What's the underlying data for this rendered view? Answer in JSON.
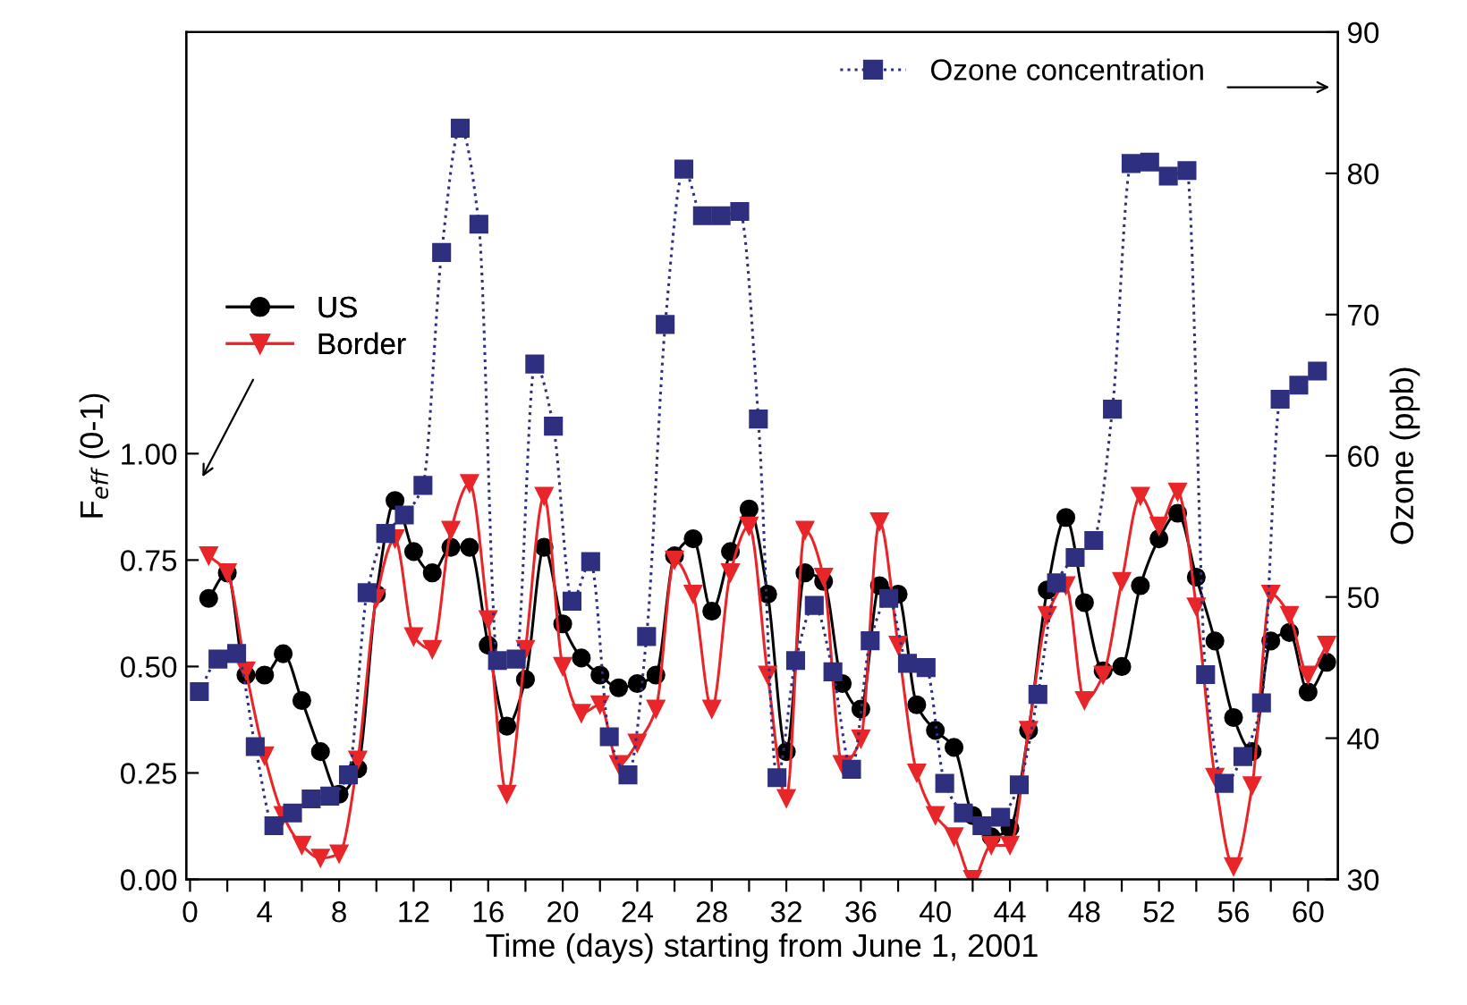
{
  "chart_data": {
    "type": "line",
    "xlabel": "Time (days) starting from June 1, 2001",
    "ylabel": "F$_{eff}$ (0-1)",
    "y2label": "Ozone (ppb)",
    "xlim": [
      -0.2,
      61.6
    ],
    "xticks": [
      0,
      {
        "value": 2,
        "label": null
      },
      4,
      {
        "value": 6,
        "label": null
      },
      8,
      {
        "value": 10,
        "label": null
      },
      12,
      {
        "value": 14,
        "label": null
      },
      16,
      {
        "value": 18,
        "label": null
      },
      20,
      {
        "value": 22,
        "label": null
      },
      24,
      {
        "value": 26,
        "label": null
      },
      28,
      {
        "value": 30,
        "label": null
      },
      32,
      {
        "value": 34,
        "label": null
      },
      36,
      {
        "value": 38,
        "label": null
      },
      40,
      {
        "value": 42,
        "label": null
      },
      44,
      {
        "value": 46,
        "label": null
      },
      48,
      {
        "value": 50,
        "label": null
      },
      52,
      {
        "value": 54,
        "label": null
      },
      56,
      {
        "value": 58,
        "label": null
      },
      60
    ],
    "ylim": [
      0,
      1.99
    ],
    "yticks": [
      {
        "value": 0,
        "label": "0.00"
      },
      {
        "value": 0.25,
        "label": "0.25"
      },
      {
        "value": 0.5,
        "label": "0.50"
      },
      {
        "value": 0.75,
        "label": "0.75"
      },
      {
        "value": 1.0,
        "label": "1.00"
      }
    ],
    "y2lim": [
      30,
      90
    ],
    "y2ticks": [
      30,
      40,
      50,
      60,
      70,
      80,
      90
    ],
    "legend": "top left",
    "grid": false,
    "series": [
      {
        "name": "US",
        "color": "#000000",
        "marker": "circle",
        "line_style": "solid",
        "x": [
          1,
          2,
          3,
          4,
          5,
          6,
          7,
          8,
          9,
          10,
          11,
          12,
          13,
          14,
          15,
          16,
          17,
          18,
          19,
          20,
          21,
          22,
          23,
          24,
          25,
          26,
          27,
          28,
          29,
          30,
          31,
          32,
          33,
          34,
          35,
          36,
          37,
          38,
          39,
          40,
          41,
          42,
          43,
          44,
          45,
          46,
          47,
          48,
          49,
          50,
          51,
          52,
          53,
          54,
          55,
          56,
          57,
          58,
          59,
          60,
          61
        ],
        "values": [
          0.66,
          0.72,
          0.48,
          0.48,
          0.53,
          0.42,
          0.3,
          0.2,
          0.26,
          0.67,
          0.89,
          0.77,
          0.72,
          0.78,
          0.78,
          0.55,
          0.36,
          0.47,
          0.78,
          0.6,
          0.52,
          0.48,
          0.45,
          0.46,
          0.48,
          0.76,
          0.8,
          0.63,
          0.77,
          0.87,
          0.67,
          0.3,
          0.72,
          0.7,
          0.46,
          0.4,
          0.69,
          0.67,
          0.41,
          0.35,
          0.31,
          0.15,
          0.1,
          0.12,
          0.35,
          0.68,
          0.85,
          0.65,
          0.49,
          0.5,
          0.69,
          0.8,
          0.86,
          0.71,
          0.56,
          0.38,
          0.3,
          0.56,
          0.58,
          0.44,
          0.51
        ]
      },
      {
        "name": "Border",
        "color": "#e8262a",
        "marker": "triangle",
        "line_style": "solid",
        "x": [
          1,
          2,
          3,
          4,
          5,
          6,
          7,
          8,
          9,
          10,
          11,
          12,
          13,
          14,
          15,
          16,
          17,
          18,
          19,
          20,
          21,
          22,
          23,
          24,
          25,
          26,
          27,
          28,
          29,
          30,
          31,
          32,
          33,
          34,
          35,
          36,
          37,
          38,
          39,
          40,
          41,
          42,
          43,
          44,
          45,
          46,
          47,
          48,
          49,
          50,
          51,
          52,
          53,
          54,
          55,
          56,
          57,
          58,
          59,
          60,
          61
        ],
        "values": [
          0.76,
          0.72,
          0.49,
          0.29,
          0.15,
          0.08,
          0.05,
          0.06,
          0.28,
          0.66,
          0.8,
          0.57,
          0.54,
          0.82,
          0.93,
          0.61,
          0.2,
          0.54,
          0.9,
          0.5,
          0.39,
          0.41,
          0.27,
          0.32,
          0.4,
          0.75,
          0.67,
          0.4,
          0.72,
          0.83,
          0.48,
          0.19,
          0.82,
          0.71,
          0.27,
          0.33,
          0.84,
          0.55,
          0.25,
          0.15,
          0.1,
          0.0,
          0.08,
          0.08,
          0.35,
          0.62,
          0.69,
          0.42,
          0.48,
          0.7,
          0.9,
          0.83,
          0.91,
          0.64,
          0.24,
          0.03,
          0.22,
          0.67,
          0.62,
          0.48,
          0.55
        ]
      },
      {
        "name": "Ozone concentration",
        "color": "#2e2f7f",
        "marker": "square",
        "line_style": "dotted",
        "axis": "y2",
        "x": [
          0.5,
          1.5,
          2.5,
          3.5,
          4.5,
          5.5,
          6.5,
          7.5,
          8.5,
          9.5,
          10.5,
          11.5,
          12.5,
          13.5,
          14.5,
          15.5,
          16.5,
          17.5,
          18.5,
          19.5,
          20.5,
          21.5,
          22.5,
          23.5,
          24.5,
          25.5,
          26.5,
          27.5,
          28.5,
          29.5,
          30.5,
          31.5,
          32.5,
          33.5,
          34.5,
          35.5,
          36.5,
          37.5,
          38.5,
          39.5,
          40.5,
          41.5,
          42.5,
          43.5,
          44.5,
          45.5,
          46.5,
          47.5,
          48.5,
          49.5,
          50.5,
          51.5,
          52.5,
          53.5,
          54.5,
          55.5,
          56.5,
          57.5,
          58.5,
          59.5,
          60.5
        ],
        "values": [
          43.3,
          45.6,
          46.0,
          39.4,
          33.8,
          34.7,
          35.7,
          35.9,
          37.4,
          50.3,
          54.5,
          55.8,
          57.9,
          74.4,
          83.2,
          76.4,
          45.5,
          45.6,
          66.5,
          62.1,
          49.7,
          52.5,
          40.1,
          37.4,
          47.2,
          69.3,
          80.3,
          77.0,
          77.0,
          77.3,
          62.6,
          37.2,
          45.5,
          49.4,
          44.7,
          37.8,
          46.9,
          49.9,
          45.3,
          45.0,
          36.8,
          34.7,
          33.8,
          34.4,
          36.7,
          43.1,
          51.0,
          52.8,
          54.0,
          63.3,
          80.7,
          80.8,
          79.8,
          80.2,
          44.5,
          36.8,
          38.7,
          42.5,
          64.0,
          65.0,
          66.0
        ]
      }
    ]
  }
}
